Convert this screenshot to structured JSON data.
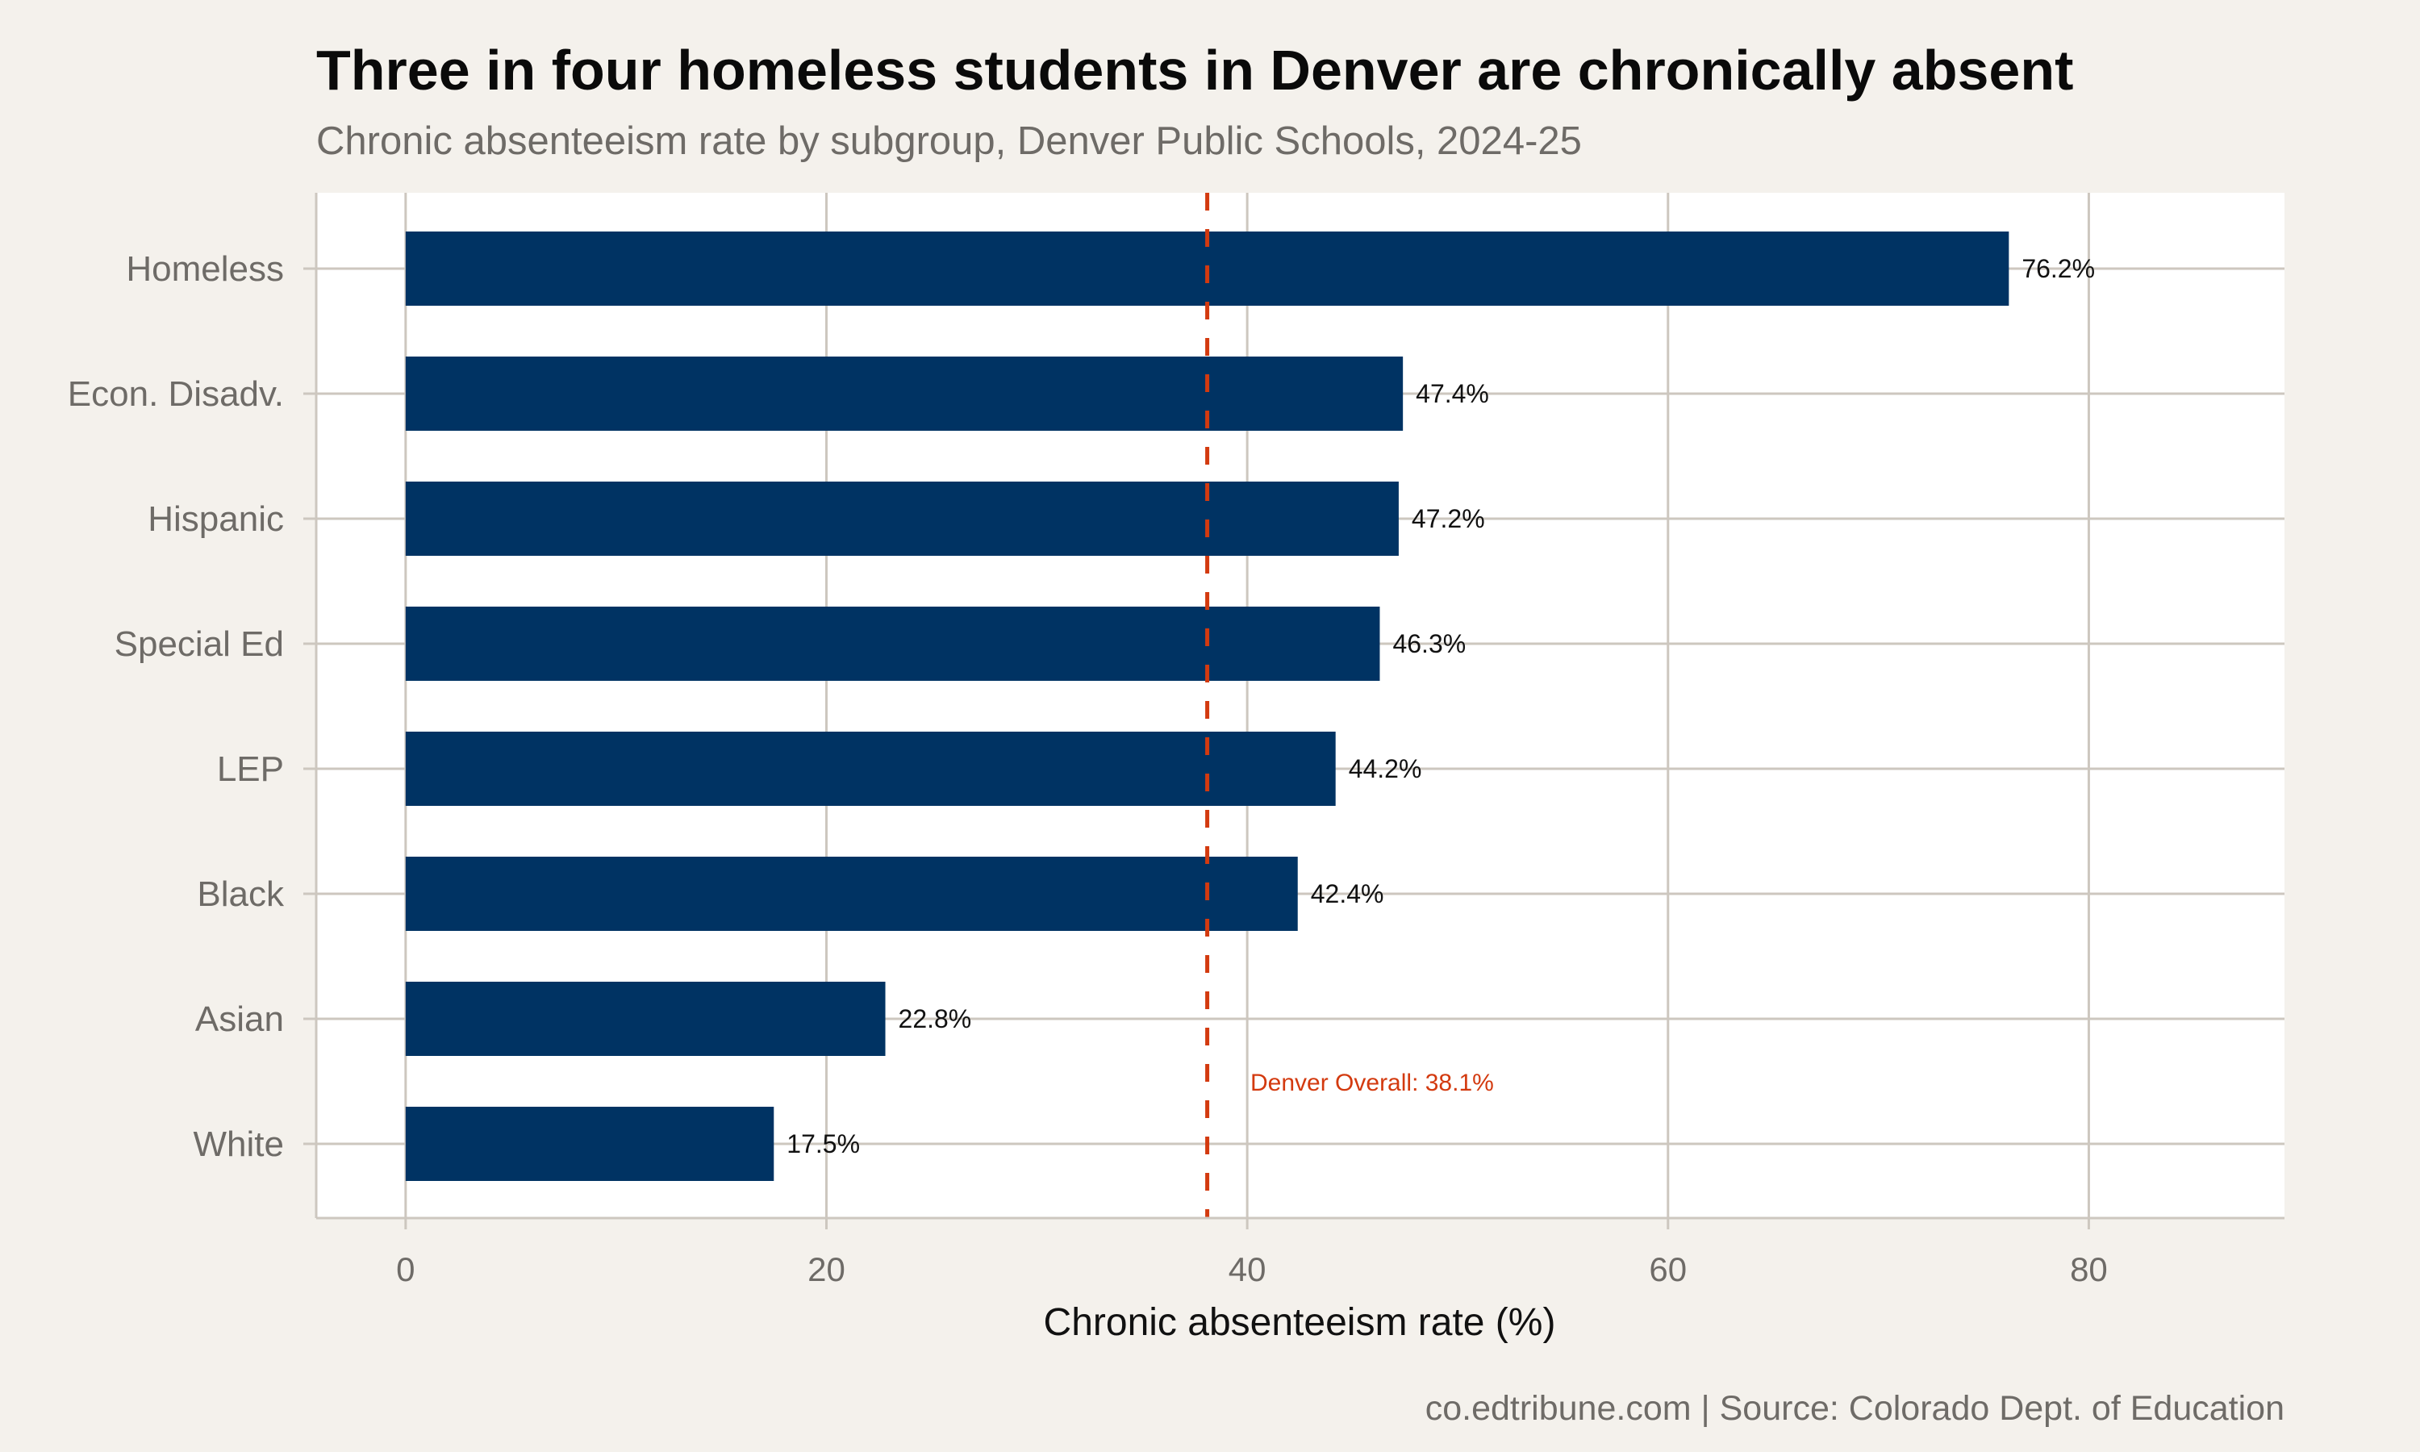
{
  "chart_data": {
    "type": "bar",
    "orientation": "horizontal",
    "title": "Three in four homeless students in Denver are chronically absent",
    "subtitle": "Chronic absenteeism rate by subgroup, Denver Public Schools, 2024-25",
    "xlabel": "Chronic absenteeism rate (%)",
    "ylabel": "",
    "categories": [
      "Homeless",
      "Econ. Disadv.",
      "Hispanic",
      "Special Ed",
      "LEP",
      "Black",
      "Asian",
      "White"
    ],
    "values": [
      76.2,
      47.4,
      47.2,
      46.3,
      44.2,
      42.4,
      22.8,
      17.5
    ],
    "data_labels": [
      "76.2%",
      "47.4%",
      "47.2%",
      "46.3%",
      "44.2%",
      "42.4%",
      "22.8%",
      "17.5%"
    ],
    "xlim": [
      -4.25,
      89.3
    ],
    "xticks": [
      0,
      20,
      40,
      60,
      80
    ],
    "xtick_labels": [
      "0",
      "20",
      "40",
      "60",
      "80"
    ],
    "grid": true,
    "reference_line": {
      "value": 38.1,
      "label": "Denver Overall: 38.1%",
      "style": "dashed",
      "color": "#d33a0f"
    },
    "bar_color": "#003363",
    "background": "#f4f1ec",
    "panel_background": "#ffffff",
    "caption": "co.edtribune.com | Source: Colorado Dept. of Education"
  }
}
